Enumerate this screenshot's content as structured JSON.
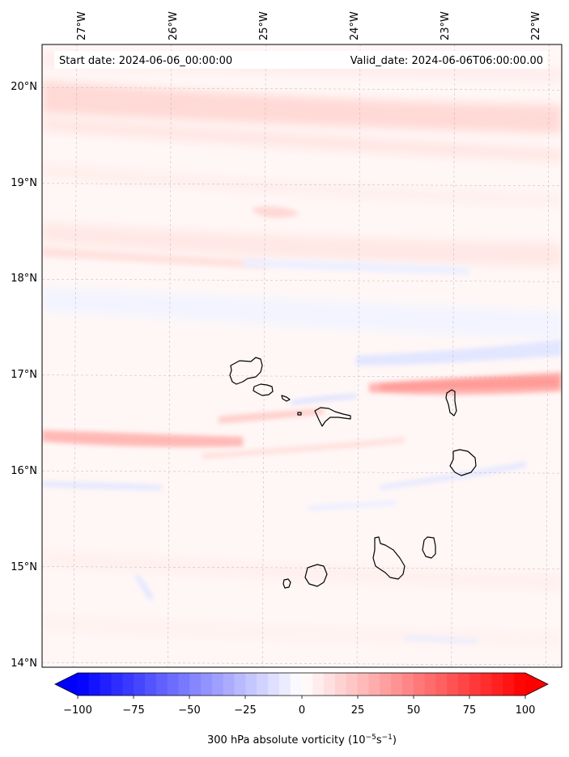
{
  "map": {
    "start_label": "Start date: 2024-06-06_00:00:00",
    "valid_label": "Valid_date: 2024-06-06T06:00:00.00",
    "lon_labels": [
      "27°W",
      "26°W",
      "25°W",
      "24°W",
      "23°W",
      "22°W"
    ],
    "lat_labels": [
      "20°N",
      "19°N",
      "18°N",
      "17°N",
      "16°N",
      "15°N",
      "14°N"
    ],
    "lon_range": [
      -27.35,
      -21.85
    ],
    "lat_range": [
      13.95,
      20.45
    ],
    "lon_ticks": [
      -27,
      -26,
      -25,
      -24,
      -23,
      -22
    ],
    "lat_ticks": [
      20,
      19,
      18,
      17,
      16,
      15,
      14
    ]
  },
  "colorbar": {
    "tick_labels": [
      "−100",
      "−75",
      "−50",
      "−25",
      "0",
      "25",
      "50",
      "75",
      "100"
    ],
    "label_main": "300 hPa absolute vorticity (10",
    "label_exp1": "−5",
    "label_mid": "s",
    "label_exp2": "−1",
    "label_end": ")",
    "min_color": "#0000ff",
    "mid_color": "#ffffff",
    "max_color": "#ff0000"
  }
}
